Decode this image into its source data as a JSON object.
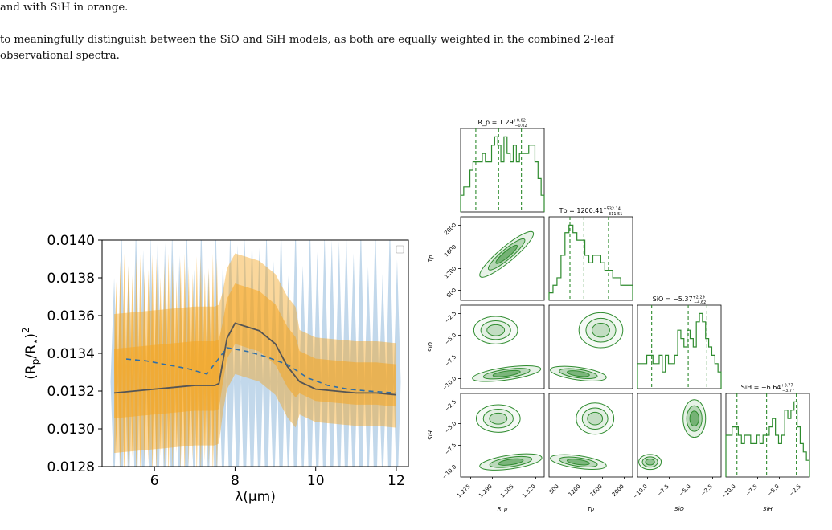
{
  "text": {
    "caption_tail": "and with SiH in orange.",
    "paragraph_line1": "to meaningfully distinguish between the SiO and SiH models, as both are equally weighted in the combined 2-leaf",
    "paragraph_line2": "observational spectra."
  },
  "colors": {
    "orange": "#f5a623",
    "blue": "#8fb8da",
    "model_line": "#555555",
    "dashed": "#2f6fa8",
    "green": "#2e8b2e"
  },
  "chart_data": [
    {
      "type": "line",
      "title": "",
      "xlabel": "λ(μm)",
      "ylabel": "(R_p/R_⋆)^2",
      "xlim": [
        4.7,
        12.3
      ],
      "ylim": [
        0.0128,
        0.014
      ],
      "xticks": [
        "6",
        "8",
        "10",
        "12"
      ],
      "yticks": [
        "0.0128",
        "0.0130",
        "0.0132",
        "0.0134",
        "0.0136",
        "0.0138",
        "0.0140"
      ],
      "legend": "top-right, empty",
      "series": [
        {
          "x": [
            5.0,
            5.5,
            6.0,
            6.5,
            7.0,
            7.5,
            7.6,
            7.8,
            8.0,
            8.3,
            8.6,
            9.0,
            9.3,
            9.6,
            10.0,
            10.5,
            11.0,
            11.5,
            12.0
          ],
          "y": [
            0.01319,
            0.0132,
            0.01321,
            0.01322,
            0.01323,
            0.01323,
            0.01324,
            0.01348,
            0.01356,
            0.01354,
            0.01352,
            0.01345,
            0.01333,
            0.01325,
            0.01321,
            0.0132,
            0.01319,
            0.01319,
            0.01318
          ]
        },
        {
          "x": [
            5.3,
            5.8,
            6.3,
            6.8,
            7.3,
            7.8,
            8.3,
            8.8,
            9.3,
            9.8,
            10.3,
            10.8,
            11.3,
            12.0
          ],
          "y": [
            0.01337,
            0.01336,
            0.01334,
            0.01332,
            0.01329,
            0.01343,
            0.01341,
            0.01338,
            0.01334,
            0.01327,
            0.01323,
            0.01321,
            0.0132,
            0.01319
          ]
        }
      ]
    },
    {
      "type": "scatter",
      "corner_titles": [
        {
          "base": "R_p = 1.29",
          "sup": "+0.02",
          "sub": "−0.02"
        },
        {
          "base": "Tp = 1200.41",
          "sup": "+532.14",
          "sub": "−311.51"
        },
        {
          "base": "SiO = −5.37",
          "sup": "+2.29",
          "sub": "−4.62"
        },
        {
          "base": "SiH = −6.64",
          "sup": "+3.77",
          "sub": "−3.77"
        }
      ],
      "params": [
        "R_p",
        "Tp",
        "SiO",
        "SiH"
      ],
      "ranges": [
        [
          1.265,
          1.32
        ],
        [
          450,
          2250
        ],
        [
          -11.8,
          -1.2
        ],
        [
          -11.8,
          -1.2
        ]
      ],
      "x_ticks": [
        [
          "1.275",
          "1.290",
          "1.305",
          "1.320"
        ],
        [
          "800",
          "1200",
          "1600",
          "2000"
        ],
        [
          "−10.0",
          "−7.5",
          "−5.0",
          "−2.5"
        ],
        [
          "−10.0",
          "−7.5",
          "−5.0",
          "−2.5"
        ]
      ],
      "y_ticks": [
        [],
        [
          "800",
          "1200",
          "1600",
          "2000"
        ],
        [
          "−10.0",
          "−7.5",
          "−5.0",
          "−2.5"
        ],
        [
          "−10.0",
          "−7.5",
          "−5.0",
          "−2.5"
        ]
      ],
      "histograms": [
        [
          2,
          3,
          3,
          5,
          6,
          6,
          6,
          7,
          6,
          6,
          8,
          9,
          8,
          6,
          9,
          7,
          6,
          8,
          6,
          7,
          7,
          7,
          8,
          8,
          6,
          4,
          2
        ],
        [
          1,
          2,
          3,
          6,
          9,
          10,
          9,
          8,
          8,
          6,
          5,
          6,
          6,
          5,
          4,
          4,
          3,
          3,
          2,
          2,
          2
        ],
        [
          3,
          3,
          3,
          4,
          4,
          3,
          3,
          4,
          2,
          4,
          3,
          3,
          4,
          7,
          6,
          5,
          7,
          6,
          5,
          8,
          9,
          8,
          6,
          5,
          4,
          3,
          2
        ],
        [
          5,
          5,
          6,
          6,
          5,
          4,
          5,
          5,
          4,
          4,
          5,
          4,
          5,
          5,
          6,
          7,
          5,
          4,
          5,
          8,
          7,
          8,
          9,
          6,
          4,
          3,
          2
        ]
      ],
      "quantiles": [
        [
          1.275,
          1.29,
          1.305
        ],
        [
          900,
          1200,
          1730
        ],
        [
          -10.0,
          -5.37,
          -3.0
        ],
        [
          -10.4,
          -6.64,
          -2.87
        ]
      ]
    }
  ]
}
